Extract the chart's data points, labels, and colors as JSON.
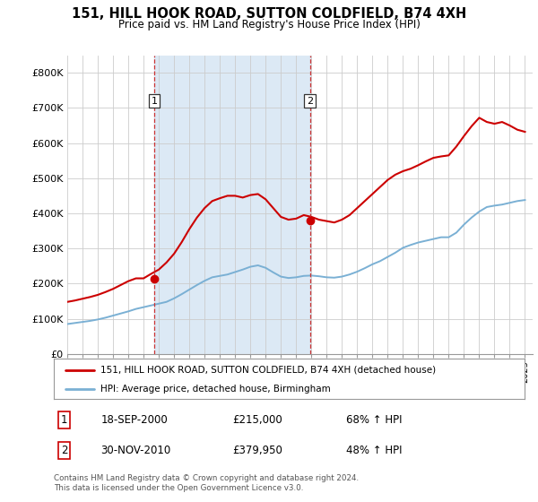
{
  "title": "151, HILL HOOK ROAD, SUTTON COLDFIELD, B74 4XH",
  "subtitle": "Price paid vs. HM Land Registry's House Price Index (HPI)",
  "legend_line1": "151, HILL HOOK ROAD, SUTTON COLDFIELD, B74 4XH (detached house)",
  "legend_line2": "HPI: Average price, detached house, Birmingham",
  "annotation1_label": "1",
  "annotation1_date": "18-SEP-2000",
  "annotation1_price": "£215,000",
  "annotation1_hpi": "68% ↑ HPI",
  "annotation2_label": "2",
  "annotation2_date": "30-NOV-2010",
  "annotation2_price": "£379,950",
  "annotation2_hpi": "48% ↑ HPI",
  "footnote": "Contains HM Land Registry data © Crown copyright and database right 2024.\nThis data is licensed under the Open Government Licence v3.0.",
  "red_color": "#cc0000",
  "blue_color": "#7ab0d4",
  "shade_color": "#dce9f5",
  "marker_color": "#cc0000",
  "vline_color": "#cc3333",
  "ylim": [
    0,
    850000
  ],
  "yticks": [
    0,
    100000,
    200000,
    300000,
    400000,
    500000,
    600000,
    700000,
    800000
  ],
  "ytick_labels": [
    "£0",
    "£100K",
    "£200K",
    "£300K",
    "£400K",
    "£500K",
    "£600K",
    "£700K",
    "£800K"
  ],
  "xmin": 1995,
  "xmax": 2025.5,
  "background_color": "#ffffff",
  "grid_color": "#cccccc",
  "sale1_year_float": 2000.708,
  "sale1_price": 215000,
  "sale2_year_float": 2010.916,
  "sale2_price": 379950,
  "hpi_years": [
    1995,
    1995.5,
    1996,
    1996.5,
    1997,
    1997.5,
    1998,
    1998.5,
    1999,
    1999.5,
    2000,
    2000.5,
    2001,
    2001.5,
    2002,
    2002.5,
    2003,
    2003.5,
    2004,
    2004.5,
    2005,
    2005.5,
    2006,
    2006.5,
    2007,
    2007.5,
    2008,
    2008.5,
    2009,
    2009.5,
    2010,
    2010.5,
    2011,
    2011.5,
    2012,
    2012.5,
    2013,
    2013.5,
    2014,
    2014.5,
    2015,
    2015.5,
    2016,
    2016.5,
    2017,
    2017.5,
    2018,
    2018.5,
    2019,
    2019.5,
    2020,
    2020.5,
    2021,
    2021.5,
    2022,
    2022.5,
    2023,
    2023.5,
    2024,
    2024.5,
    2025
  ],
  "hpi_values": [
    85000,
    88000,
    91000,
    94000,
    98000,
    103000,
    109000,
    115000,
    121000,
    128000,
    133000,
    138000,
    143000,
    148000,
    158000,
    170000,
    183000,
    196000,
    208000,
    218000,
    222000,
    226000,
    233000,
    240000,
    248000,
    252000,
    245000,
    232000,
    220000,
    216000,
    218000,
    222000,
    223000,
    221000,
    218000,
    217000,
    220000,
    226000,
    234000,
    244000,
    255000,
    264000,
    276000,
    288000,
    302000,
    310000,
    317000,
    322000,
    327000,
    332000,
    332000,
    345000,
    368000,
    388000,
    405000,
    418000,
    422000,
    425000,
    430000,
    435000,
    438000
  ],
  "red_years": [
    1995,
    1995.5,
    1996,
    1996.5,
    1997,
    1997.5,
    1998,
    1998.5,
    1999,
    1999.5,
    2000,
    2000.5,
    2001,
    2001.5,
    2002,
    2002.5,
    2003,
    2003.5,
    2004,
    2004.5,
    2005,
    2005.5,
    2006,
    2006.5,
    2007,
    2007.5,
    2008,
    2008.5,
    2009,
    2009.5,
    2010,
    2010.5,
    2011,
    2011.5,
    2012,
    2012.5,
    2013,
    2013.5,
    2014,
    2014.5,
    2015,
    2015.5,
    2016,
    2016.5,
    2017,
    2017.5,
    2018,
    2018.5,
    2019,
    2019.5,
    2020,
    2020.5,
    2021,
    2021.5,
    2022,
    2022.5,
    2023,
    2023.5,
    2024,
    2024.5,
    2025
  ],
  "red_values": [
    148000,
    152000,
    157000,
    162000,
    168000,
    176000,
    185000,
    196000,
    207000,
    215000,
    215000,
    228000,
    240000,
    260000,
    285000,
    318000,
    355000,
    388000,
    415000,
    435000,
    443000,
    450000,
    450000,
    445000,
    452000,
    455000,
    440000,
    415000,
    390000,
    382000,
    385000,
    395000,
    390000,
    382000,
    378000,
    374000,
    382000,
    395000,
    415000,
    435000,
    455000,
    475000,
    495000,
    510000,
    520000,
    527000,
    537000,
    548000,
    558000,
    562000,
    565000,
    590000,
    620000,
    648000,
    672000,
    660000,
    655000,
    660000,
    650000,
    638000,
    632000
  ]
}
